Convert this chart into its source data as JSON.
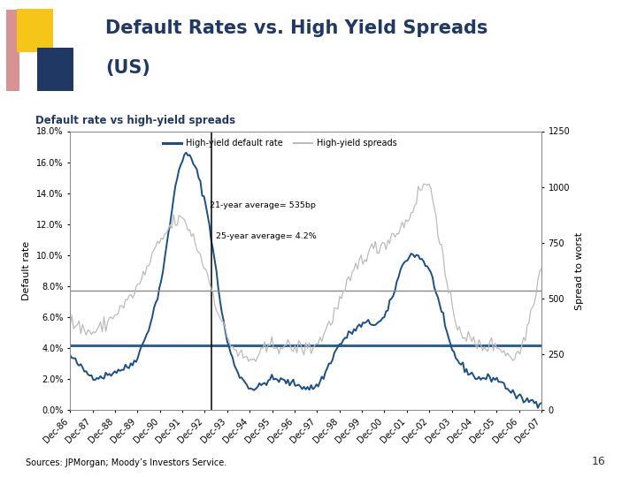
{
  "title": "Default Rates vs. High Yield Spreads\n(US)",
  "subtitle": "Default rate vs high-yield spreads",
  "source_text": "Sources: JPMorgan; Moody’s Investors Service.",
  "page_number": "16",
  "legend_label1": "High-yield default rate",
  "legend_label2": "High-yield spreads",
  "annotation1": "21-year average= 535bp",
  "annotation2": "25-year average= 4.2%",
  "avg_default": 4.2,
  "avg_spread": 535,
  "ylabel_left": "Default rate",
  "ylabel_right": "Spread to worst",
  "ylim_left": [
    0,
    18
  ],
  "ylim_right": [
    0,
    1250
  ],
  "yticks_left": [
    0,
    2,
    4,
    6,
    8,
    10,
    12,
    14,
    16,
    18
  ],
  "yticks_right": [
    0,
    250,
    500,
    750,
    1000,
    1250
  ],
  "title_color": "#1F3864",
  "subtitle_color": "#1F3864",
  "line1_color": "#1a4f8a",
  "line2_color": "#BBBBBB",
  "avg_line_color_spread": "#888888",
  "avg_line_color_default": "#1a4f8a",
  "slide_bg": "#FFFFFF",
  "years": [
    "Dec-86",
    "Dec-87",
    "Dec-88",
    "Dec-89",
    "Dec-90",
    "Dec-91",
    "Dec-92",
    "Dec-93",
    "Dec-94",
    "Dec-95",
    "Dec-96",
    "Dec-97",
    "Dec-98",
    "Dec-99",
    "Dec-00",
    "Dec-01",
    "Dec-02",
    "Dec-03",
    "Dec-04",
    "Dec-05",
    "Dec-06",
    "Dec-07"
  ],
  "default_rate_annual": [
    3.5,
    2.2,
    2.5,
    3.5,
    8.0,
    16.2,
    13.5,
    4.5,
    1.5,
    2.0,
    1.7,
    1.6,
    4.2,
    5.5,
    6.0,
    9.8,
    9.0,
    4.0,
    2.2,
    2.0,
    0.8,
    0.5
  ],
  "hy_spreads_annual": [
    400,
    350,
    430,
    550,
    750,
    850,
    640,
    330,
    225,
    290,
    280,
    300,
    480,
    680,
    750,
    850,
    1000,
    460,
    300,
    290,
    260,
    650
  ]
}
